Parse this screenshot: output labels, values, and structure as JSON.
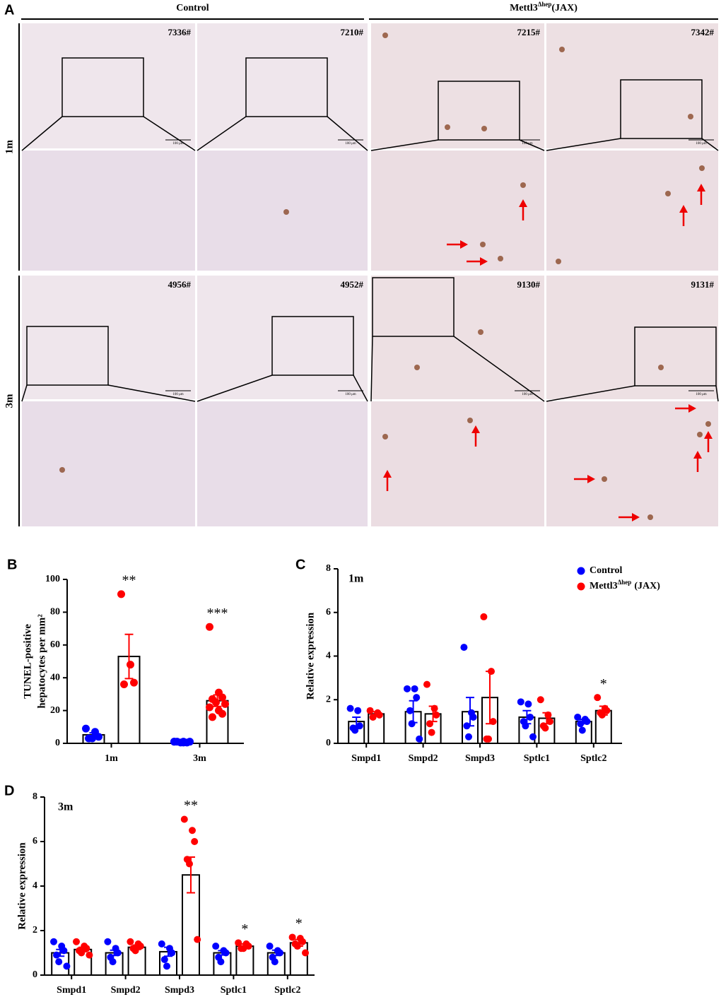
{
  "panel_a": {
    "label": "A",
    "scale_bar": "100 μm",
    "columns": [
      {
        "text": "Control"
      },
      {
        "text": "Mettl3",
        "sup": "Δhep",
        "suffix": "(JAX)"
      }
    ],
    "rows": [
      {
        "label": "1m",
        "samples": [
          "7336#",
          "7210#",
          "7215#",
          "7342#"
        ]
      },
      {
        "label": "3m",
        "samples": [
          "4956#",
          "4952#",
          "9130#",
          "9131#"
        ]
      }
    ]
  },
  "chart_data": [
    {
      "type": "bar",
      "panel_label": "B",
      "ylabel": [
        "TUNEL-positive",
        "hepatocytes per mm²"
      ],
      "categories": [
        "1m",
        "3m"
      ],
      "ylim": [
        0,
        100
      ],
      "yticks": [
        0,
        20,
        40,
        60,
        80,
        100
      ],
      "legend": false,
      "series": [
        {
          "color": "#0000ff",
          "values": [
            5.2,
            0.8
          ],
          "errors": [
            1.2,
            0.1
          ],
          "points": [
            [
              9,
              7,
              4,
              3,
              3
            ],
            [
              1,
              1,
              0.5,
              1,
              0.5,
              1,
              1,
              0.5
            ]
          ]
        },
        {
          "color": "#ff0000",
          "values": [
            53,
            26
          ],
          "errors": [
            13.5,
            3.5
          ],
          "points": [
            [
              91,
              48,
              37,
              36
            ],
            [
              71,
              31,
              28,
              27,
              25,
              24,
              22,
              20,
              18,
              16
            ]
          ]
        }
      ],
      "annotations": [
        {
          "category": "1m",
          "text": "**"
        },
        {
          "category": "3m",
          "text": "***"
        }
      ]
    },
    {
      "type": "bar",
      "panel_label": "C",
      "subtitle": "1m",
      "ylabel": [
        "Relative expression"
      ],
      "categories": [
        "Smpd1",
        "Smpd2",
        "Smpd3",
        "Sptlc1",
        "Sptlc2"
      ],
      "ylim": [
        0,
        8
      ],
      "yticks": [
        0,
        2,
        4,
        6,
        8
      ],
      "legend": true,
      "series": [
        {
          "name": "Control",
          "color": "#0000ff",
          "values": [
            1.0,
            1.45,
            1.45,
            1.2,
            1.0
          ],
          "errors": [
            0.2,
            0.5,
            0.65,
            0.3,
            0.1
          ],
          "points": [
            [
              1.6,
              1.5,
              0.8,
              0.7,
              0.6
            ],
            [
              2.5,
              2.5,
              2.1,
              1.5,
              0.9,
              0.2
            ],
            [
              4.4,
              1.4,
              1.2,
              0.8,
              0.3
            ],
            [
              1.9,
              1.8,
              1.2,
              1.0,
              0.8,
              0.3
            ],
            [
              1.2,
              1.1,
              1.0,
              0.9,
              0.6
            ]
          ]
        },
        {
          "name": "Mettl3",
          "name_sup": "Δhep",
          "name_suffix": "(JAX)",
          "color": "#ff0000",
          "values": [
            1.35,
            1.35,
            2.1,
            1.15,
            1.5
          ],
          "errors": [
            0.1,
            0.35,
            1.2,
            0.25,
            0.2
          ],
          "points": [
            [
              1.5,
              1.4,
              1.3,
              1.2
            ],
            [
              2.7,
              1.6,
              1.3,
              0.9,
              0.5
            ],
            [
              5.8,
              3.3,
              1.0,
              0.2,
              0.2
            ],
            [
              2.0,
              1.3,
              1.0,
              0.8,
              0.7
            ],
            [
              2.1,
              1.6,
              1.5,
              1.4,
              1.3
            ]
          ]
        }
      ],
      "annotations": [
        {
          "category": "Sptlc2",
          "text": "*"
        }
      ]
    },
    {
      "type": "bar",
      "panel_label": "D",
      "subtitle": "3m",
      "ylabel": [
        "Relative expression"
      ],
      "categories": [
        "Smpd1",
        "Smpd2",
        "Smpd3",
        "Sptlc1",
        "Sptlc2"
      ],
      "ylim": [
        0,
        8
      ],
      "yticks": [
        0,
        2,
        4,
        6,
        8
      ],
      "legend": false,
      "series": [
        {
          "color": "#0000ff",
          "values": [
            1.0,
            1.0,
            1.05,
            1.0,
            1.0
          ],
          "errors": [
            0.15,
            0.12,
            0.2,
            0.1,
            0.12
          ],
          "points": [
            [
              1.5,
              1.3,
              1.1,
              0.9,
              0.6,
              0.4
            ],
            [
              1.5,
              1.2,
              1.0,
              0.8,
              0.6
            ],
            [
              1.4,
              1.2,
              1.0,
              0.7,
              0.4
            ],
            [
              1.3,
              1.1,
              1.0,
              0.8,
              0.6
            ],
            [
              1.3,
              1.1,
              1.0,
              0.8,
              0.6
            ]
          ]
        },
        {
          "color": "#ff0000",
          "values": [
            1.15,
            1.25,
            4.5,
            1.3,
            1.45
          ],
          "errors": [
            0.1,
            0.1,
            0.8,
            0.1,
            0.15
          ],
          "points": [
            [
              1.5,
              1.3,
              1.2,
              1.1,
              1.0,
              0.9
            ],
            [
              1.5,
              1.4,
              1.3,
              1.2,
              1.1
            ],
            [
              7.0,
              6.5,
              6.0,
              5.2,
              5.0,
              1.6
            ],
            [
              1.45,
              1.4,
              1.3,
              1.2,
              1.2
            ],
            [
              1.7,
              1.65,
              1.5,
              1.4,
              1.3,
              1.0
            ]
          ]
        }
      ],
      "annotations": [
        {
          "category": "Smpd3",
          "text": "**"
        },
        {
          "category": "Sptlc1",
          "text": "*"
        },
        {
          "category": "Sptlc2",
          "text": "*"
        }
      ]
    }
  ]
}
